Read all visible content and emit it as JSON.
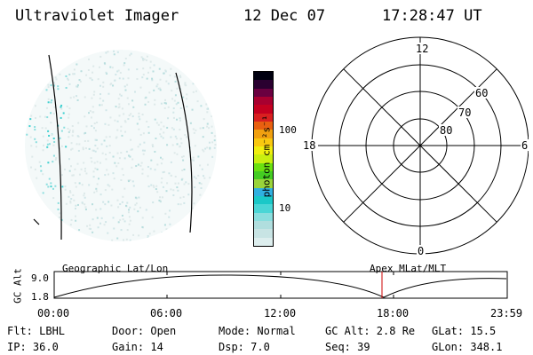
{
  "header": {
    "title": "Ultraviolet Imager",
    "date": "12 Dec 07",
    "time": "17:28:47 UT"
  },
  "colorbar": {
    "label": "photon cm⁻²s⁻¹",
    "ticks": [
      "100",
      "10"
    ],
    "colors": [
      "#ddeeee",
      "#c8e4e4",
      "#b0dede",
      "#8adede",
      "#4ad6d6",
      "#1ac8c8",
      "#30b0e0",
      "#9ad43a",
      "#44cc22",
      "#6ae010",
      "#c8ee10",
      "#f0ee10",
      "#f8c810",
      "#f0a010",
      "#e86010",
      "#d82020",
      "#c40020",
      "#a80030",
      "#6a0040",
      "#2a0030",
      "#000010"
    ]
  },
  "polar_plot": {
    "mlt_labels": {
      "top": "12",
      "left": "18",
      "right": "6",
      "bottom": "0"
    },
    "lat_labels": [
      "60",
      "70",
      "80"
    ]
  },
  "timeline": {
    "left_title": "Geographic Lat/Lon",
    "right_title": "Apex MLat/MLT",
    "axis_label": "GC Alt",
    "y_ticks": [
      "9.0",
      "1.8"
    ],
    "x_ticks": [
      "00:00",
      "06:00",
      "12:00",
      "18:00",
      "23:59"
    ]
  },
  "info": {
    "flt": "Flt: LBHL",
    "ip": "IP: 36.0",
    "door": "Door: Open",
    "gain": "Gain: 14",
    "mode": "Mode: Normal",
    "dsp": "Dsp:     7.0",
    "gcalt": "GC Alt: 2.8 Re",
    "seq": "Seq: 39",
    "glat": "GLat:   15.5",
    "glon": "GLon: 348.1"
  },
  "colors": {
    "cursor": "#cc0000",
    "dot": "#7fd8d8"
  }
}
